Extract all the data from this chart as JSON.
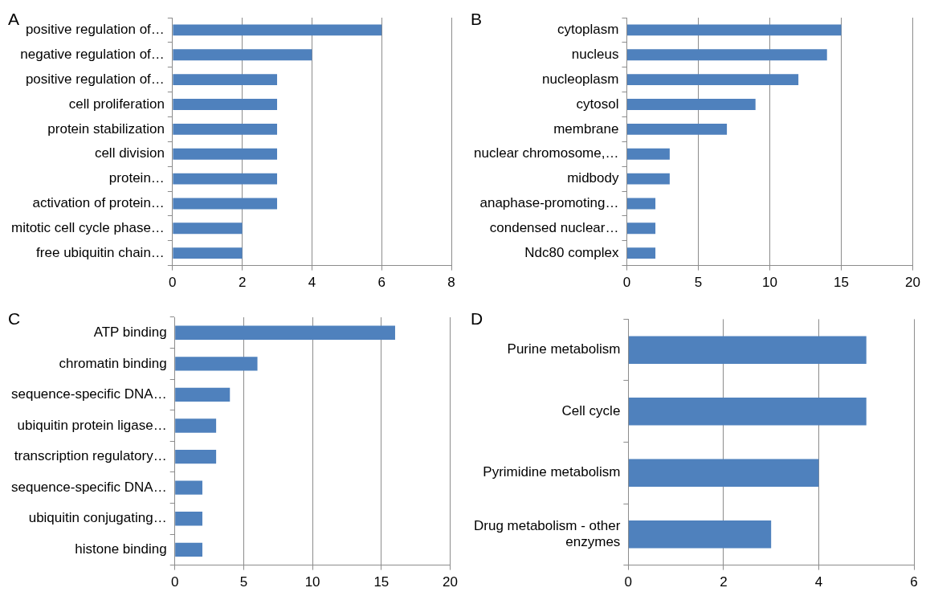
{
  "chart_data": [
    {
      "type": "bar",
      "title": "A",
      "orientation": "horizontal",
      "categories": [
        "positive regulation of…",
        "negative regulation of…",
        "positive regulation of…",
        "cell proliferation",
        "protein stabilization",
        "cell division",
        "protein…",
        "activation of protein…",
        "mitotic cell cycle phase…",
        "free ubiquitin chain…"
      ],
      "values": [
        6,
        4,
        3,
        3,
        3,
        3,
        3,
        3,
        2,
        2
      ],
      "color": "#4f81bd",
      "xlim": [
        0,
        8
      ],
      "xticks": [
        0,
        2,
        4,
        6,
        8
      ],
      "grid": "x"
    },
    {
      "type": "bar",
      "title": "B",
      "orientation": "horizontal",
      "categories": [
        "cytoplasm",
        "nucleus",
        "nucleoplasm",
        "cytosol",
        "membrane",
        "nuclear chromosome,…",
        "midbody",
        "anaphase-promoting…",
        "condensed nuclear…",
        "Ndc80 complex"
      ],
      "values": [
        15,
        14,
        12,
        9,
        7,
        3,
        3,
        2,
        2,
        2
      ],
      "color": "#4f81bd",
      "xlim": [
        0,
        20
      ],
      "xticks": [
        0,
        5,
        10,
        15,
        20
      ],
      "grid": "x"
    },
    {
      "type": "bar",
      "title": "C",
      "orientation": "horizontal",
      "categories": [
        "ATP binding",
        "chromatin binding",
        "sequence-specific DNA…",
        "ubiquitin protein ligase…",
        "transcription regulatory…",
        "sequence-specific DNA…",
        "ubiquitin conjugating…",
        "histone binding"
      ],
      "values": [
        16,
        6,
        4,
        3,
        3,
        2,
        2,
        2
      ],
      "color": "#4f81bd",
      "xlim": [
        0,
        20
      ],
      "xticks": [
        0,
        5,
        10,
        15,
        20
      ],
      "grid": "x"
    },
    {
      "type": "bar",
      "title": "D",
      "orientation": "horizontal",
      "categories": [
        "Purine metabolism",
        "Cell cycle",
        "Pyrimidine metabolism",
        "Drug metabolism - other enzymes"
      ],
      "values": [
        5,
        5,
        4,
        3
      ],
      "color": "#4f81bd",
      "xlim": [
        0,
        6
      ],
      "xticks": [
        0,
        2,
        4,
        6
      ],
      "grid": "x"
    }
  ]
}
